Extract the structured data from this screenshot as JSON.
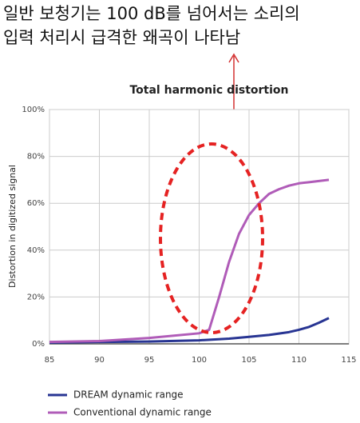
{
  "chart_data": {
    "type": "line",
    "annotations": [
      "일반 보청기는 100 dB를 넘어서는 소리의",
      "입력 처리시 급격한 왜곡이 나타남"
    ],
    "title": "Total harmonic distortion",
    "y_label": "Distortion in digitized signal",
    "xlim": [
      85,
      115
    ],
    "xticks": [
      85,
      90,
      95,
      100,
      105,
      110,
      115
    ],
    "ylim": [
      0,
      100
    ],
    "yticks": [
      {
        "value": 0,
        "label": "0%"
      },
      {
        "value": 20,
        "label": "20%"
      },
      {
        "value": 40,
        "label": "40%"
      },
      {
        "value": 60,
        "label": "60%"
      },
      {
        "value": 80,
        "label": "80%"
      },
      {
        "value": 100,
        "label": "100%"
      }
    ],
    "grid": true,
    "series": [
      {
        "name": "DREAM dynamic range",
        "color": "#283593",
        "x": [
          85,
          90,
          95,
          100,
          103,
          105,
          107,
          109,
          110,
          111,
          112,
          113
        ],
        "values": [
          0.5,
          0.8,
          1.0,
          1.5,
          2.2,
          3.0,
          3.8,
          5.0,
          6.0,
          7.2,
          9.0,
          11.0
        ]
      },
      {
        "name": "Conventional dynamic range",
        "color": "#b05cb8",
        "x": [
          85,
          90,
          95,
          100,
          101,
          102,
          103,
          104,
          105,
          106,
          107,
          108,
          109,
          110,
          111,
          112,
          113
        ],
        "values": [
          0.8,
          1.2,
          2.5,
          4.5,
          6.0,
          20,
          35,
          47,
          55,
          60,
          64,
          66,
          67.5,
          68.5,
          69,
          69.5,
          70
        ]
      }
    ]
  }
}
